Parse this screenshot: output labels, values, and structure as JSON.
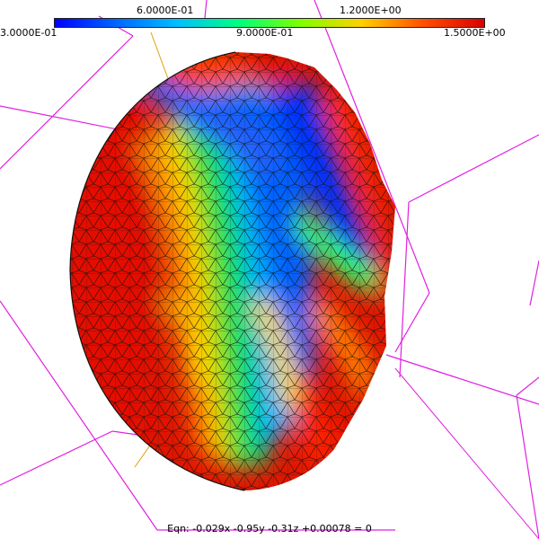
{
  "colorbar": {
    "gradient": [
      "#0000ff",
      "#0066ff",
      "#00bfff",
      "#00ff7f",
      "#7fff00",
      "#ffd000",
      "#ff5000",
      "#d80000"
    ],
    "labels_top": [
      "6.0000E-01",
      "1.2000E+00"
    ],
    "labels_bottom": [
      "3.0000E-01",
      "9.0000E-01",
      "1.5000E+00"
    ]
  },
  "equation": "Eqn:  -0.029x -0.95y -0.31z +0.00078 = 0",
  "colors": {
    "bounding_box": "#e020e0",
    "mesh_edge": "#111111",
    "axis_line": "#e0a000"
  }
}
